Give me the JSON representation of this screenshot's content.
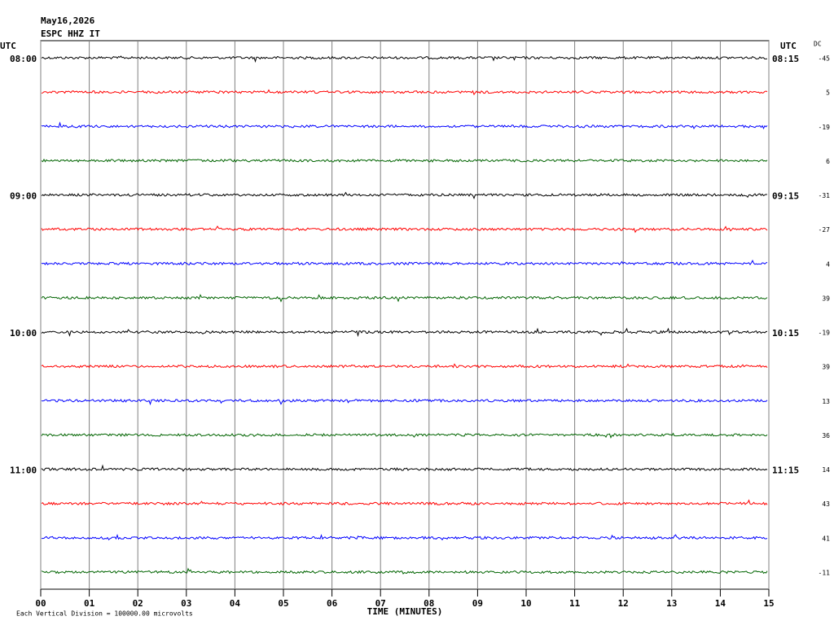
{
  "chart_data": {
    "type": "helicorder",
    "title": "May16,2026",
    "subtitle": "ESPC HHZ IT",
    "left_axis_label": "UTC",
    "right_axis_label": "UTC",
    "offset_label": "DC",
    "x_label": "TIME (MINUTES)",
    "note": "Each Vertical Division = 100000.00 microvolts",
    "trace_colors": [
      "#000000",
      "#ff0000",
      "#0000ff",
      "#006400"
    ],
    "left_times": [
      "08:00",
      null,
      null,
      null,
      "09:00",
      null,
      null,
      null,
      "10:00",
      null,
      null,
      null,
      "11:00",
      null,
      null,
      null
    ],
    "right_times": [
      "08:15",
      null,
      null,
      null,
      "09:15",
      null,
      null,
      null,
      "10:15",
      null,
      null,
      null,
      "11:15",
      null,
      null,
      null
    ],
    "dc": [
      -45,
      5,
      -19,
      6,
      -31,
      -27,
      4,
      39,
      -19,
      39,
      13,
      36,
      14,
      43,
      41,
      -11
    ],
    "xlim": [
      0,
      15
    ],
    "xticks": [
      {
        "value": 0,
        "label": "00"
      },
      {
        "value": 1,
        "label": "01"
      },
      {
        "value": 2,
        "label": "02"
      },
      {
        "value": 3,
        "label": "03"
      },
      {
        "value": 4,
        "label": "04"
      },
      {
        "value": 5,
        "label": "05"
      },
      {
        "value": 6,
        "label": "06"
      },
      {
        "value": 7,
        "label": "07"
      },
      {
        "value": 8,
        "label": "08"
      },
      {
        "value": 9,
        "label": "09"
      },
      10,
      11,
      12,
      13,
      14,
      15
    ],
    "grid": true
  }
}
